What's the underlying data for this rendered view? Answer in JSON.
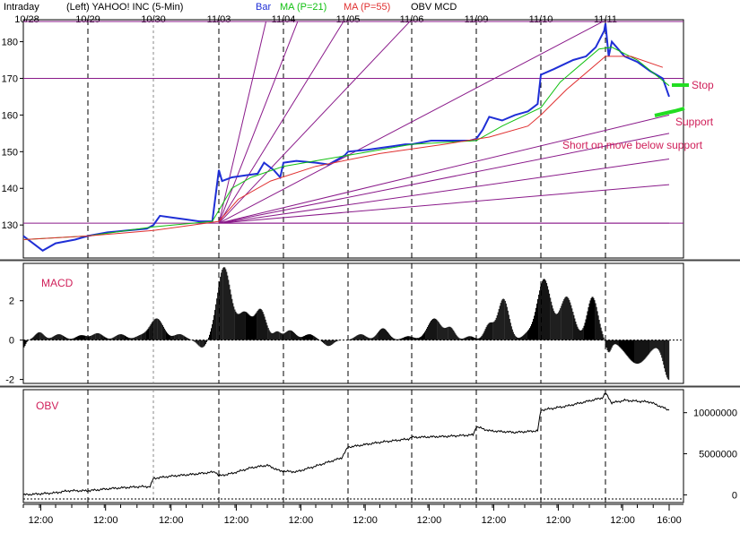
{
  "header": {
    "intraday": "Intraday",
    "description": "(Left)  YAHOO! INC  (5-Min)",
    "legend_bar": "Bar",
    "legend_ma21": "MA (P=21)",
    "legend_ma55": "MA (P=55)",
    "legend_obv": "OBV  MCD"
  },
  "colors": {
    "price": "#1f2fd6",
    "ma21": "#10c010",
    "ma55": "#e03030",
    "fan": "#8a1a8a",
    "annotation": "#d0205a",
    "green_mark": "#22dd22"
  },
  "annotations": {
    "stop": "Stop",
    "support": "Support",
    "short": "Short on move below support"
  },
  "panels": {
    "macd_label": "MACD",
    "obv_label": "OBV"
  },
  "chart_data": [
    {
      "type": "line",
      "panel": "price",
      "date_labels": [
        "10/28",
        "10/29",
        "10/30",
        "11/03",
        "11/04",
        "11/05",
        "11/06",
        "11/09",
        "11/10",
        "11/11"
      ],
      "y_ticks": [
        130,
        140,
        150,
        160,
        170,
        180
      ],
      "ylim": [
        121,
        186
      ],
      "horizontal_lines": [
        130.5,
        170,
        185.5
      ],
      "price_path": [
        [
          0.0,
          127
        ],
        [
          0.15,
          125
        ],
        [
          0.3,
          123
        ],
        [
          0.5,
          125
        ],
        [
          0.8,
          126
        ],
        [
          1.0,
          127
        ],
        [
          1.3,
          128
        ],
        [
          1.6,
          128.5
        ],
        [
          1.9,
          129
        ],
        [
          2.0,
          130
        ],
        [
          2.1,
          132.5
        ],
        [
          2.3,
          132
        ],
        [
          2.5,
          131.5
        ],
        [
          2.7,
          131
        ],
        [
          2.9,
          131
        ],
        [
          3.0,
          145
        ],
        [
          3.05,
          142
        ],
        [
          3.2,
          143
        ],
        [
          3.4,
          143.5
        ],
        [
          3.6,
          144
        ],
        [
          3.7,
          147
        ],
        [
          3.85,
          145
        ],
        [
          3.95,
          143
        ],
        [
          4.0,
          147
        ],
        [
          4.2,
          147.5
        ],
        [
          4.5,
          147
        ],
        [
          4.7,
          146.5
        ],
        [
          4.85,
          148
        ],
        [
          4.95,
          149
        ],
        [
          5.0,
          150
        ],
        [
          5.3,
          150.5
        ],
        [
          5.5,
          151
        ],
        [
          5.7,
          151.5
        ],
        [
          5.9,
          152
        ],
        [
          6.0,
          152
        ],
        [
          6.3,
          153
        ],
        [
          6.6,
          153
        ],
        [
          6.9,
          153
        ],
        [
          7.0,
          153.5
        ],
        [
          7.1,
          156
        ],
        [
          7.2,
          159.5
        ],
        [
          7.4,
          158.5
        ],
        [
          7.6,
          160
        ],
        [
          7.8,
          161
        ],
        [
          7.95,
          163
        ],
        [
          8.0,
          171
        ],
        [
          8.2,
          172.5
        ],
        [
          8.5,
          175
        ],
        [
          8.7,
          176
        ],
        [
          8.85,
          178.5
        ],
        [
          8.98,
          183
        ],
        [
          9.0,
          185
        ],
        [
          9.05,
          176
        ],
        [
          9.1,
          180
        ],
        [
          9.3,
          176
        ],
        [
          9.5,
          174.5
        ],
        [
          9.7,
          172
        ],
        [
          9.9,
          170
        ],
        [
          10.0,
          165
        ]
      ],
      "ma21_path": [
        [
          0.0,
          126
        ],
        [
          1.0,
          127
        ],
        [
          2.0,
          129.5
        ],
        [
          2.9,
          131
        ],
        [
          3.0,
          134
        ],
        [
          3.2,
          140
        ],
        [
          3.5,
          143
        ],
        [
          4.0,
          146
        ],
        [
          5.0,
          149
        ],
        [
          6.0,
          152
        ],
        [
          7.0,
          153
        ],
        [
          7.4,
          157
        ],
        [
          8.0,
          162
        ],
        [
          8.3,
          169
        ],
        [
          8.9,
          178
        ],
        [
          9.1,
          178.5
        ],
        [
          9.5,
          175
        ],
        [
          10.0,
          168
        ]
      ],
      "ma55_path": [
        [
          0.0,
          126
        ],
        [
          1.0,
          127
        ],
        [
          2.0,
          128.5
        ],
        [
          3.0,
          131
        ],
        [
          3.3,
          137
        ],
        [
          3.8,
          142
        ],
        [
          4.5,
          146
        ],
        [
          5.5,
          149.5
        ],
        [
          6.5,
          152
        ],
        [
          7.2,
          154
        ],
        [
          7.8,
          157
        ],
        [
          8.0,
          160
        ],
        [
          8.4,
          167
        ],
        [
          9.0,
          176
        ],
        [
          9.4,
          176
        ],
        [
          9.9,
          173
        ]
      ],
      "fan_origin": [
        3.0,
        130.5
      ],
      "fan_targets": [
        [
          3.73,
          185.5
        ],
        [
          4.22,
          185.5
        ],
        [
          4.93,
          185.5
        ],
        [
          5.97,
          185.5
        ],
        [
          8.96,
          185.5
        ],
        [
          10.0,
          160
        ],
        [
          10.0,
          155
        ],
        [
          10.0,
          148
        ],
        [
          10.0,
          141
        ],
        [
          10.0,
          130.5
        ]
      ]
    },
    {
      "type": "bar",
      "panel": "macd",
      "y_ticks": [
        -2,
        0,
        2
      ],
      "ylim": [
        -2.2,
        3.9
      ],
      "bumps": [
        [
          0.0,
          0.05,
          -0.4
        ],
        [
          0.25,
          0.1,
          0.4
        ],
        [
          0.55,
          0.12,
          0.3
        ],
        [
          0.9,
          0.12,
          0.25
        ],
        [
          1.15,
          0.12,
          0.35
        ],
        [
          1.5,
          0.12,
          0.3
        ],
        [
          1.8,
          0.12,
          0.2
        ],
        [
          2.05,
          0.15,
          1.1
        ],
        [
          2.4,
          0.12,
          0.3
        ],
        [
          2.75,
          0.1,
          -0.4
        ],
        [
          3.08,
          0.15,
          3.7
        ],
        [
          3.4,
          0.15,
          1.4
        ],
        [
          3.65,
          0.12,
          1.5
        ],
        [
          3.9,
          0.08,
          0.4
        ],
        [
          4.1,
          0.12,
          0.5
        ],
        [
          4.4,
          0.12,
          0.3
        ],
        [
          4.7,
          0.1,
          -0.3
        ],
        [
          5.2,
          0.12,
          0.3
        ],
        [
          5.55,
          0.12,
          0.6
        ],
        [
          5.95,
          0.12,
          0.2
        ],
        [
          6.35,
          0.15,
          1.1
        ],
        [
          6.6,
          0.1,
          0.6
        ],
        [
          6.9,
          0.1,
          0.2
        ],
        [
          7.2,
          0.1,
          0.8
        ],
        [
          7.42,
          0.12,
          2.1
        ],
        [
          7.8,
          0.12,
          0.3
        ],
        [
          8.05,
          0.15,
          3.1
        ],
        [
          8.4,
          0.15,
          2.2
        ],
        [
          8.8,
          0.12,
          2.2
        ],
        [
          9.05,
          0.06,
          -0.6
        ],
        [
          9.5,
          0.25,
          -1.2
        ],
        [
          10.0,
          0.12,
          -2.0
        ]
      ]
    },
    {
      "type": "line",
      "panel": "obv",
      "y_ticks": [
        "0",
        "5000000",
        "10000000"
      ],
      "ylim": [
        -500000,
        12800000
      ],
      "obv_path": [
        [
          0.0,
          0
        ],
        [
          0.5,
          250000
        ],
        [
          0.7,
          500000
        ],
        [
          1.0,
          500000
        ],
        [
          1.4,
          800000
        ],
        [
          1.8,
          1000000
        ],
        [
          1.95,
          1000000
        ],
        [
          2.0,
          2000000
        ],
        [
          2.3,
          2300000
        ],
        [
          2.6,
          2500000
        ],
        [
          2.95,
          2800000
        ],
        [
          3.0,
          2300000
        ],
        [
          3.2,
          2600000
        ],
        [
          3.5,
          3300000
        ],
        [
          3.75,
          3600000
        ],
        [
          3.95,
          2900000
        ],
        [
          4.2,
          2800000
        ],
        [
          4.5,
          3500000
        ],
        [
          4.9,
          4500000
        ],
        [
          5.0,
          5800000
        ],
        [
          5.5,
          6400000
        ],
        [
          5.95,
          6800000
        ],
        [
          6.0,
          7000000
        ],
        [
          6.5,
          7100000
        ],
        [
          6.95,
          7300000
        ],
        [
          7.0,
          8300000
        ],
        [
          7.2,
          7800000
        ],
        [
          7.6,
          7600000
        ],
        [
          7.95,
          7800000
        ],
        [
          8.0,
          10300000
        ],
        [
          8.4,
          10800000
        ],
        [
          8.95,
          11800000
        ],
        [
          9.0,
          12400000
        ],
        [
          9.1,
          11200000
        ],
        [
          9.3,
          11500000
        ],
        [
          9.7,
          11300000
        ],
        [
          10.0,
          10300000
        ]
      ]
    },
    {
      "type": "axis",
      "panel": "time",
      "time_labels": [
        "12:00",
        "12:00",
        "12:00",
        "12:00",
        "12:00",
        "12:00",
        "12:00",
        "12:00",
        "12:00",
        "12:00",
        "16:00"
      ]
    }
  ]
}
